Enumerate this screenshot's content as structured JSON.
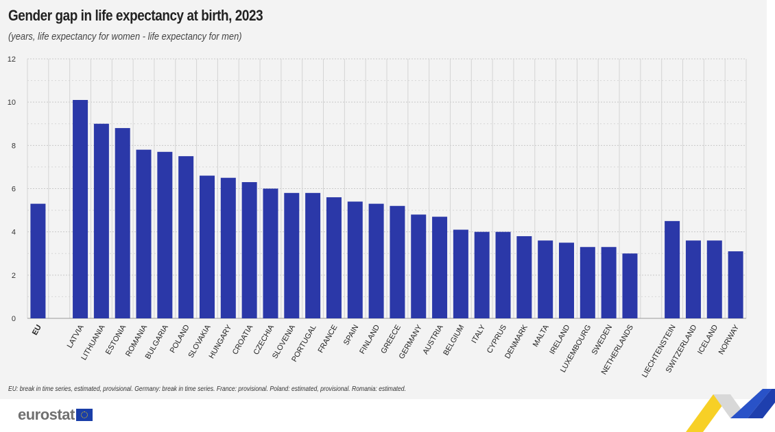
{
  "chart_data": {
    "type": "bar",
    "title": "Gender gap in life expectancy at birth, 2023",
    "subtitle": "(years, life expectancy for women - life expectancy for men)",
    "xlabel": "",
    "ylabel": "",
    "ylim": [
      0,
      12
    ],
    "yticks": [
      0,
      2,
      4,
      6,
      8,
      10,
      12
    ],
    "grid": true,
    "bar_color": "#2b38a8",
    "groups": [
      {
        "categories": [
          "EU"
        ],
        "values": [
          5.3
        ]
      },
      {
        "categories": [
          "LATVIA",
          "LITHUANIA",
          "ESTONIA",
          "ROMANIA",
          "BULGARIA",
          "POLAND",
          "SLOVAKIA",
          "HUNGARY",
          "CROATIA",
          "CZECHIA",
          "SLOVENIA",
          "PORTUGAL",
          "FRANCE",
          "SPAIN",
          "FINLAND",
          "GREECE",
          "GERMANY",
          "AUSTRIA",
          "BELGIUM",
          "ITALY",
          "CYPRUS",
          "DENMARK",
          "MALTA",
          "IRELAND",
          "LUXEMBOURG",
          "SWEDEN",
          "NETHERLANDS"
        ],
        "values": [
          10.1,
          9.0,
          8.8,
          7.8,
          7.7,
          7.5,
          6.6,
          6.5,
          6.3,
          6.0,
          5.8,
          5.8,
          5.6,
          5.4,
          5.3,
          5.2,
          4.8,
          4.7,
          4.1,
          4.0,
          4.0,
          3.8,
          3.6,
          3.5,
          3.3,
          3.3,
          3.0
        ]
      },
      {
        "categories": [
          "LIECHTENSTEIN",
          "SWITZERLAND",
          "ICELAND",
          "NORWAY"
        ],
        "values": [
          4.5,
          3.6,
          3.6,
          3.1
        ]
      }
    ]
  },
  "footnote": "EU: break in time series, estimated, provisional. Germany: break in time series. France: provisional. Poland: estimated, provisional. Romania: estimated.",
  "logo": "eurostat"
}
